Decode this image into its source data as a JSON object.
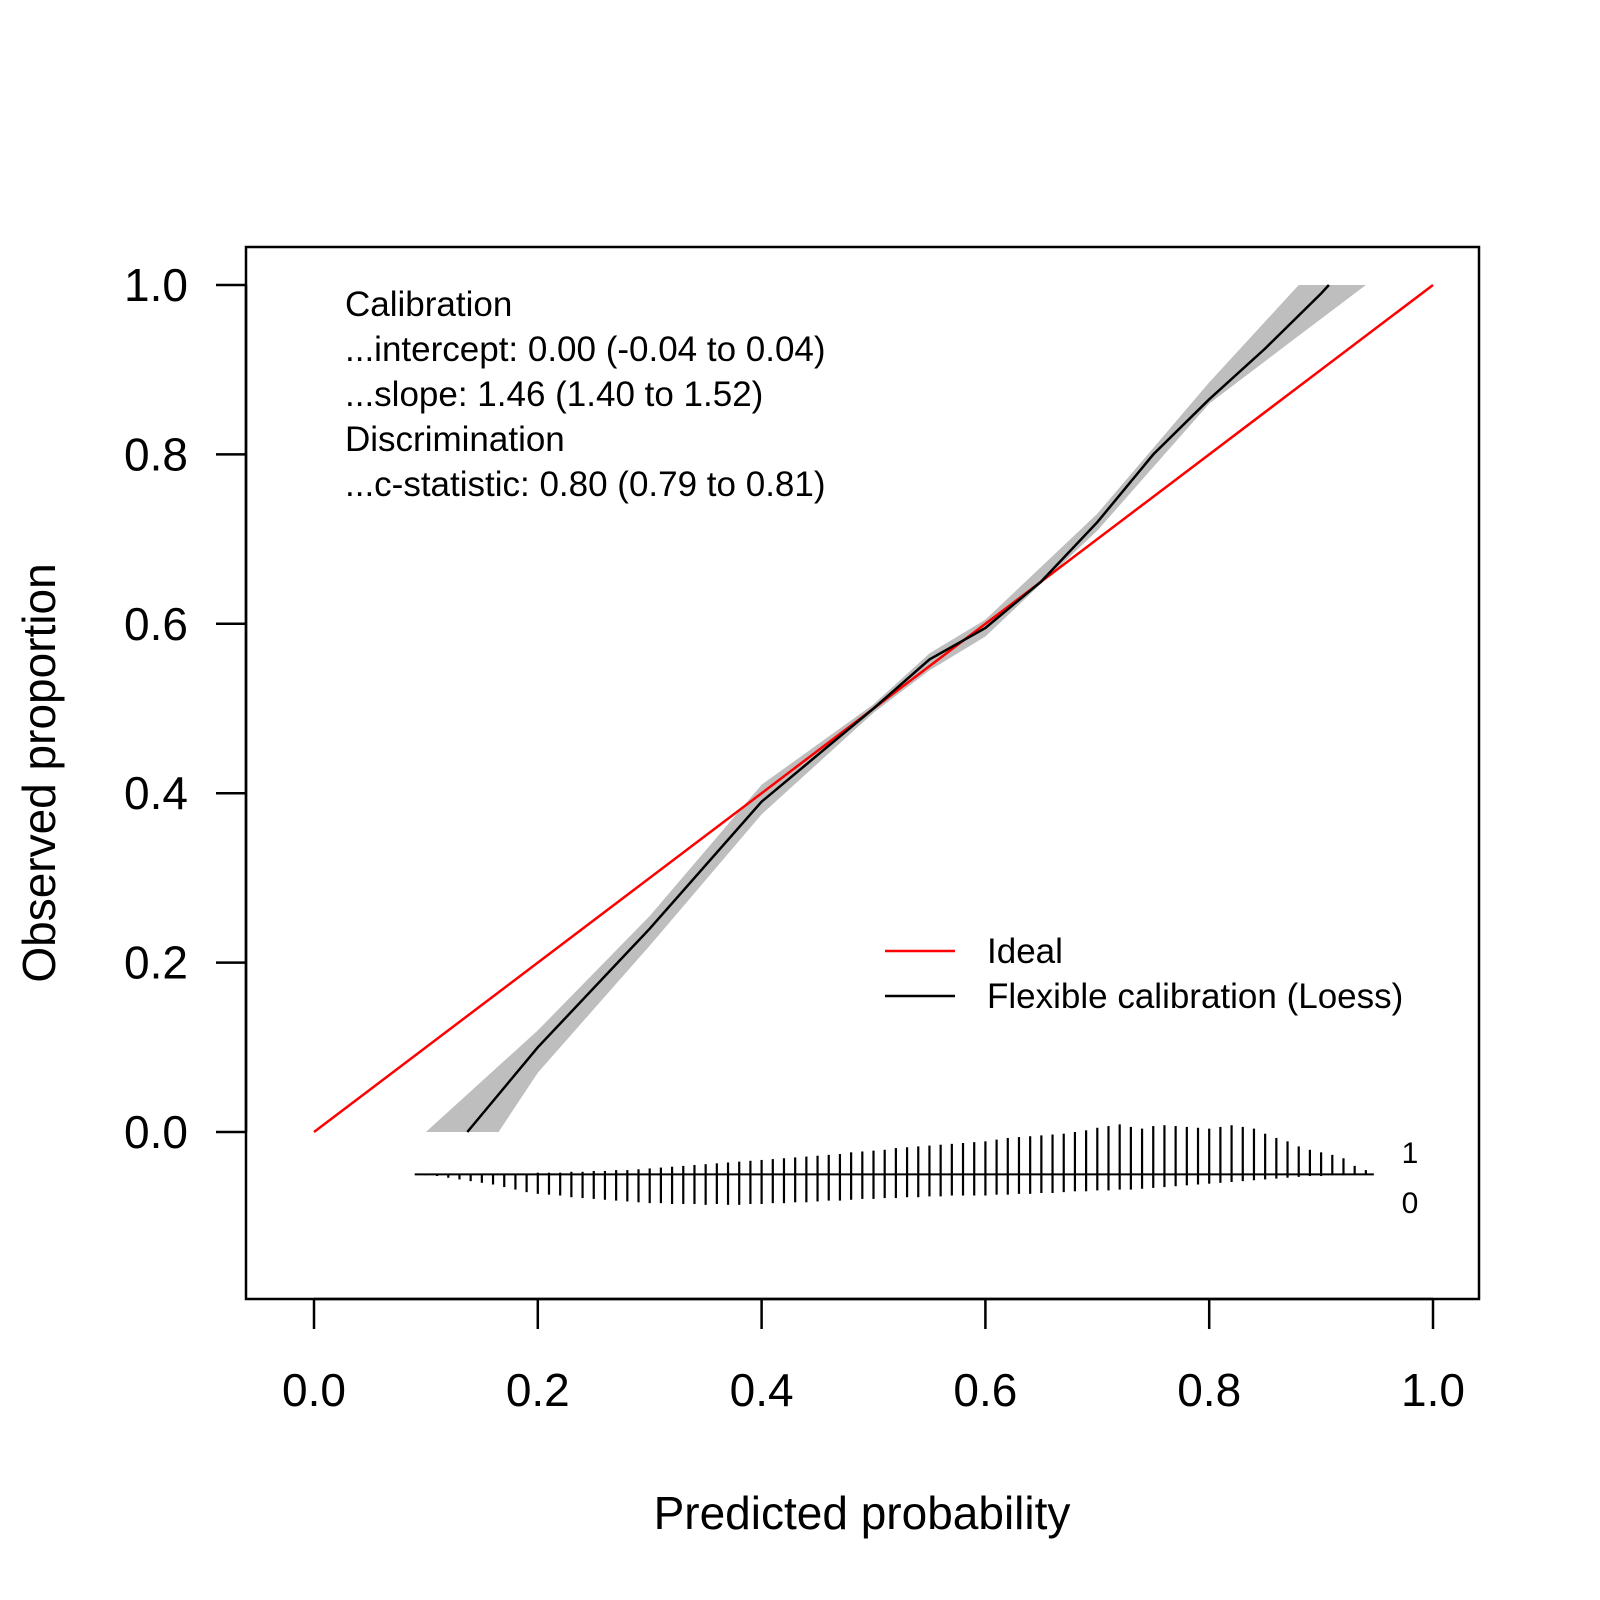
{
  "chart_data": {
    "type": "line",
    "title": "",
    "xlabel": "Predicted probability",
    "ylabel": "Observed proportion",
    "xlim": [
      0.0,
      1.0
    ],
    "ylim": [
      0.0,
      1.0
    ],
    "x_ticks": [
      "0.0",
      "0.2",
      "0.4",
      "0.6",
      "0.8",
      "1.0"
    ],
    "y_ticks": [
      "0.0",
      "0.2",
      "0.4",
      "0.6",
      "0.8",
      "1.0"
    ],
    "grid": false,
    "legend_position": "center-right",
    "stats_lines": [
      "Calibration",
      "...intercept: 0.00 (-0.04 to 0.04)",
      "...slope: 1.46 (1.40 to 1.52)",
      "Discrimination",
      "...c-statistic: 0.80 (0.79 to 0.81)"
    ],
    "series": [
      {
        "name": "Ideal",
        "color": "#ff0000",
        "x": [
          0.0,
          1.0
        ],
        "y": [
          0.0,
          1.0
        ]
      },
      {
        "name": "Flexible calibration (Loess)",
        "color": "#000000",
        "x": [
          0.137,
          0.2,
          0.3,
          0.4,
          0.45,
          0.5,
          0.55,
          0.6,
          0.65,
          0.7,
          0.75,
          0.8,
          0.85,
          0.9,
          0.907
        ],
        "y": [
          0.0,
          0.1,
          0.24,
          0.39,
          0.445,
          0.5,
          0.558,
          0.595,
          0.65,
          0.72,
          0.8,
          0.865,
          0.925,
          0.99,
          1.0
        ],
        "ci_color": "#bebebe",
        "ci_x": [
          0.1,
          0.2,
          0.3,
          0.4,
          0.5,
          0.55,
          0.6,
          0.7,
          0.8,
          0.88,
          0.94
        ],
        "ci_lower": [
          0.0,
          0.07,
          0.22,
          0.375,
          0.495,
          0.545,
          0.585,
          0.71,
          0.86,
          0.94,
          1.0
        ],
        "ci_upper": [
          0.0,
          0.12,
          0.255,
          0.41,
          0.505,
          0.565,
          0.605,
          0.73,
          0.885,
          1.0,
          1.0
        ],
        "ci_end_x_low": 0.1,
        "ci_end_x_high": 0.165
      }
    ],
    "spike_histogram": {
      "label_events": "1",
      "label_nonevents": "0",
      "bin_width": 0.01,
      "x": [
        0.09,
        0.1,
        0.11,
        0.12,
        0.13,
        0.14,
        0.15,
        0.16,
        0.17,
        0.18,
        0.19,
        0.2,
        0.21,
        0.22,
        0.23,
        0.24,
        0.25,
        0.26,
        0.27,
        0.28,
        0.29,
        0.3,
        0.31,
        0.32,
        0.33,
        0.34,
        0.35,
        0.36,
        0.37,
        0.38,
        0.39,
        0.4,
        0.41,
        0.42,
        0.43,
        0.44,
        0.45,
        0.46,
        0.47,
        0.48,
        0.49,
        0.5,
        0.51,
        0.52,
        0.53,
        0.54,
        0.55,
        0.56,
        0.57,
        0.58,
        0.59,
        0.6,
        0.61,
        0.62,
        0.63,
        0.64,
        0.65,
        0.66,
        0.67,
        0.68,
        0.69,
        0.7,
        0.71,
        0.72,
        0.73,
        0.74,
        0.75,
        0.76,
        0.77,
        0.78,
        0.79,
        0.8,
        0.81,
        0.82,
        0.83,
        0.84,
        0.85,
        0.86,
        0.87,
        0.88,
        0.89,
        0.9,
        0.91,
        0.92,
        0.93,
        0.94
      ],
      "events": [
        0.0,
        0.0,
        0.0,
        0.0,
        0.0,
        0.0,
        0.0,
        0.0,
        0.0,
        0.0,
        0.0,
        0.002,
        0.002,
        0.002,
        0.003,
        0.003,
        0.004,
        0.004,
        0.005,
        0.005,
        0.006,
        0.007,
        0.008,
        0.009,
        0.01,
        0.011,
        0.012,
        0.013,
        0.014,
        0.015,
        0.016,
        0.017,
        0.018,
        0.019,
        0.02,
        0.021,
        0.022,
        0.023,
        0.024,
        0.026,
        0.027,
        0.028,
        0.029,
        0.031,
        0.032,
        0.033,
        0.034,
        0.035,
        0.036,
        0.037,
        0.038,
        0.039,
        0.041,
        0.043,
        0.044,
        0.045,
        0.046,
        0.047,
        0.048,
        0.05,
        0.052,
        0.055,
        0.057,
        0.059,
        0.056,
        0.054,
        0.057,
        0.058,
        0.057,
        0.056,
        0.055,
        0.054,
        0.056,
        0.058,
        0.056,
        0.054,
        0.048,
        0.043,
        0.039,
        0.033,
        0.029,
        0.026,
        0.023,
        0.019,
        0.01,
        0.005
      ],
      "nonevents": [
        0.0,
        0.001,
        0.002,
        0.004,
        0.006,
        0.008,
        0.01,
        0.012,
        0.015,
        0.018,
        0.021,
        0.023,
        0.024,
        0.025,
        0.027,
        0.028,
        0.029,
        0.03,
        0.031,
        0.032,
        0.033,
        0.034,
        0.034,
        0.035,
        0.035,
        0.035,
        0.036,
        0.035,
        0.036,
        0.036,
        0.035,
        0.035,
        0.034,
        0.034,
        0.033,
        0.033,
        0.032,
        0.031,
        0.031,
        0.03,
        0.029,
        0.029,
        0.028,
        0.028,
        0.027,
        0.027,
        0.026,
        0.026,
        0.025,
        0.025,
        0.025,
        0.025,
        0.024,
        0.024,
        0.023,
        0.023,
        0.022,
        0.022,
        0.021,
        0.02,
        0.02,
        0.019,
        0.019,
        0.018,
        0.018,
        0.017,
        0.016,
        0.015,
        0.014,
        0.013,
        0.012,
        0.011,
        0.01,
        0.009,
        0.008,
        0.007,
        0.006,
        0.005,
        0.004,
        0.003,
        0.002,
        0.002,
        0.001,
        0.001,
        0.0,
        0.0
      ]
    }
  }
}
